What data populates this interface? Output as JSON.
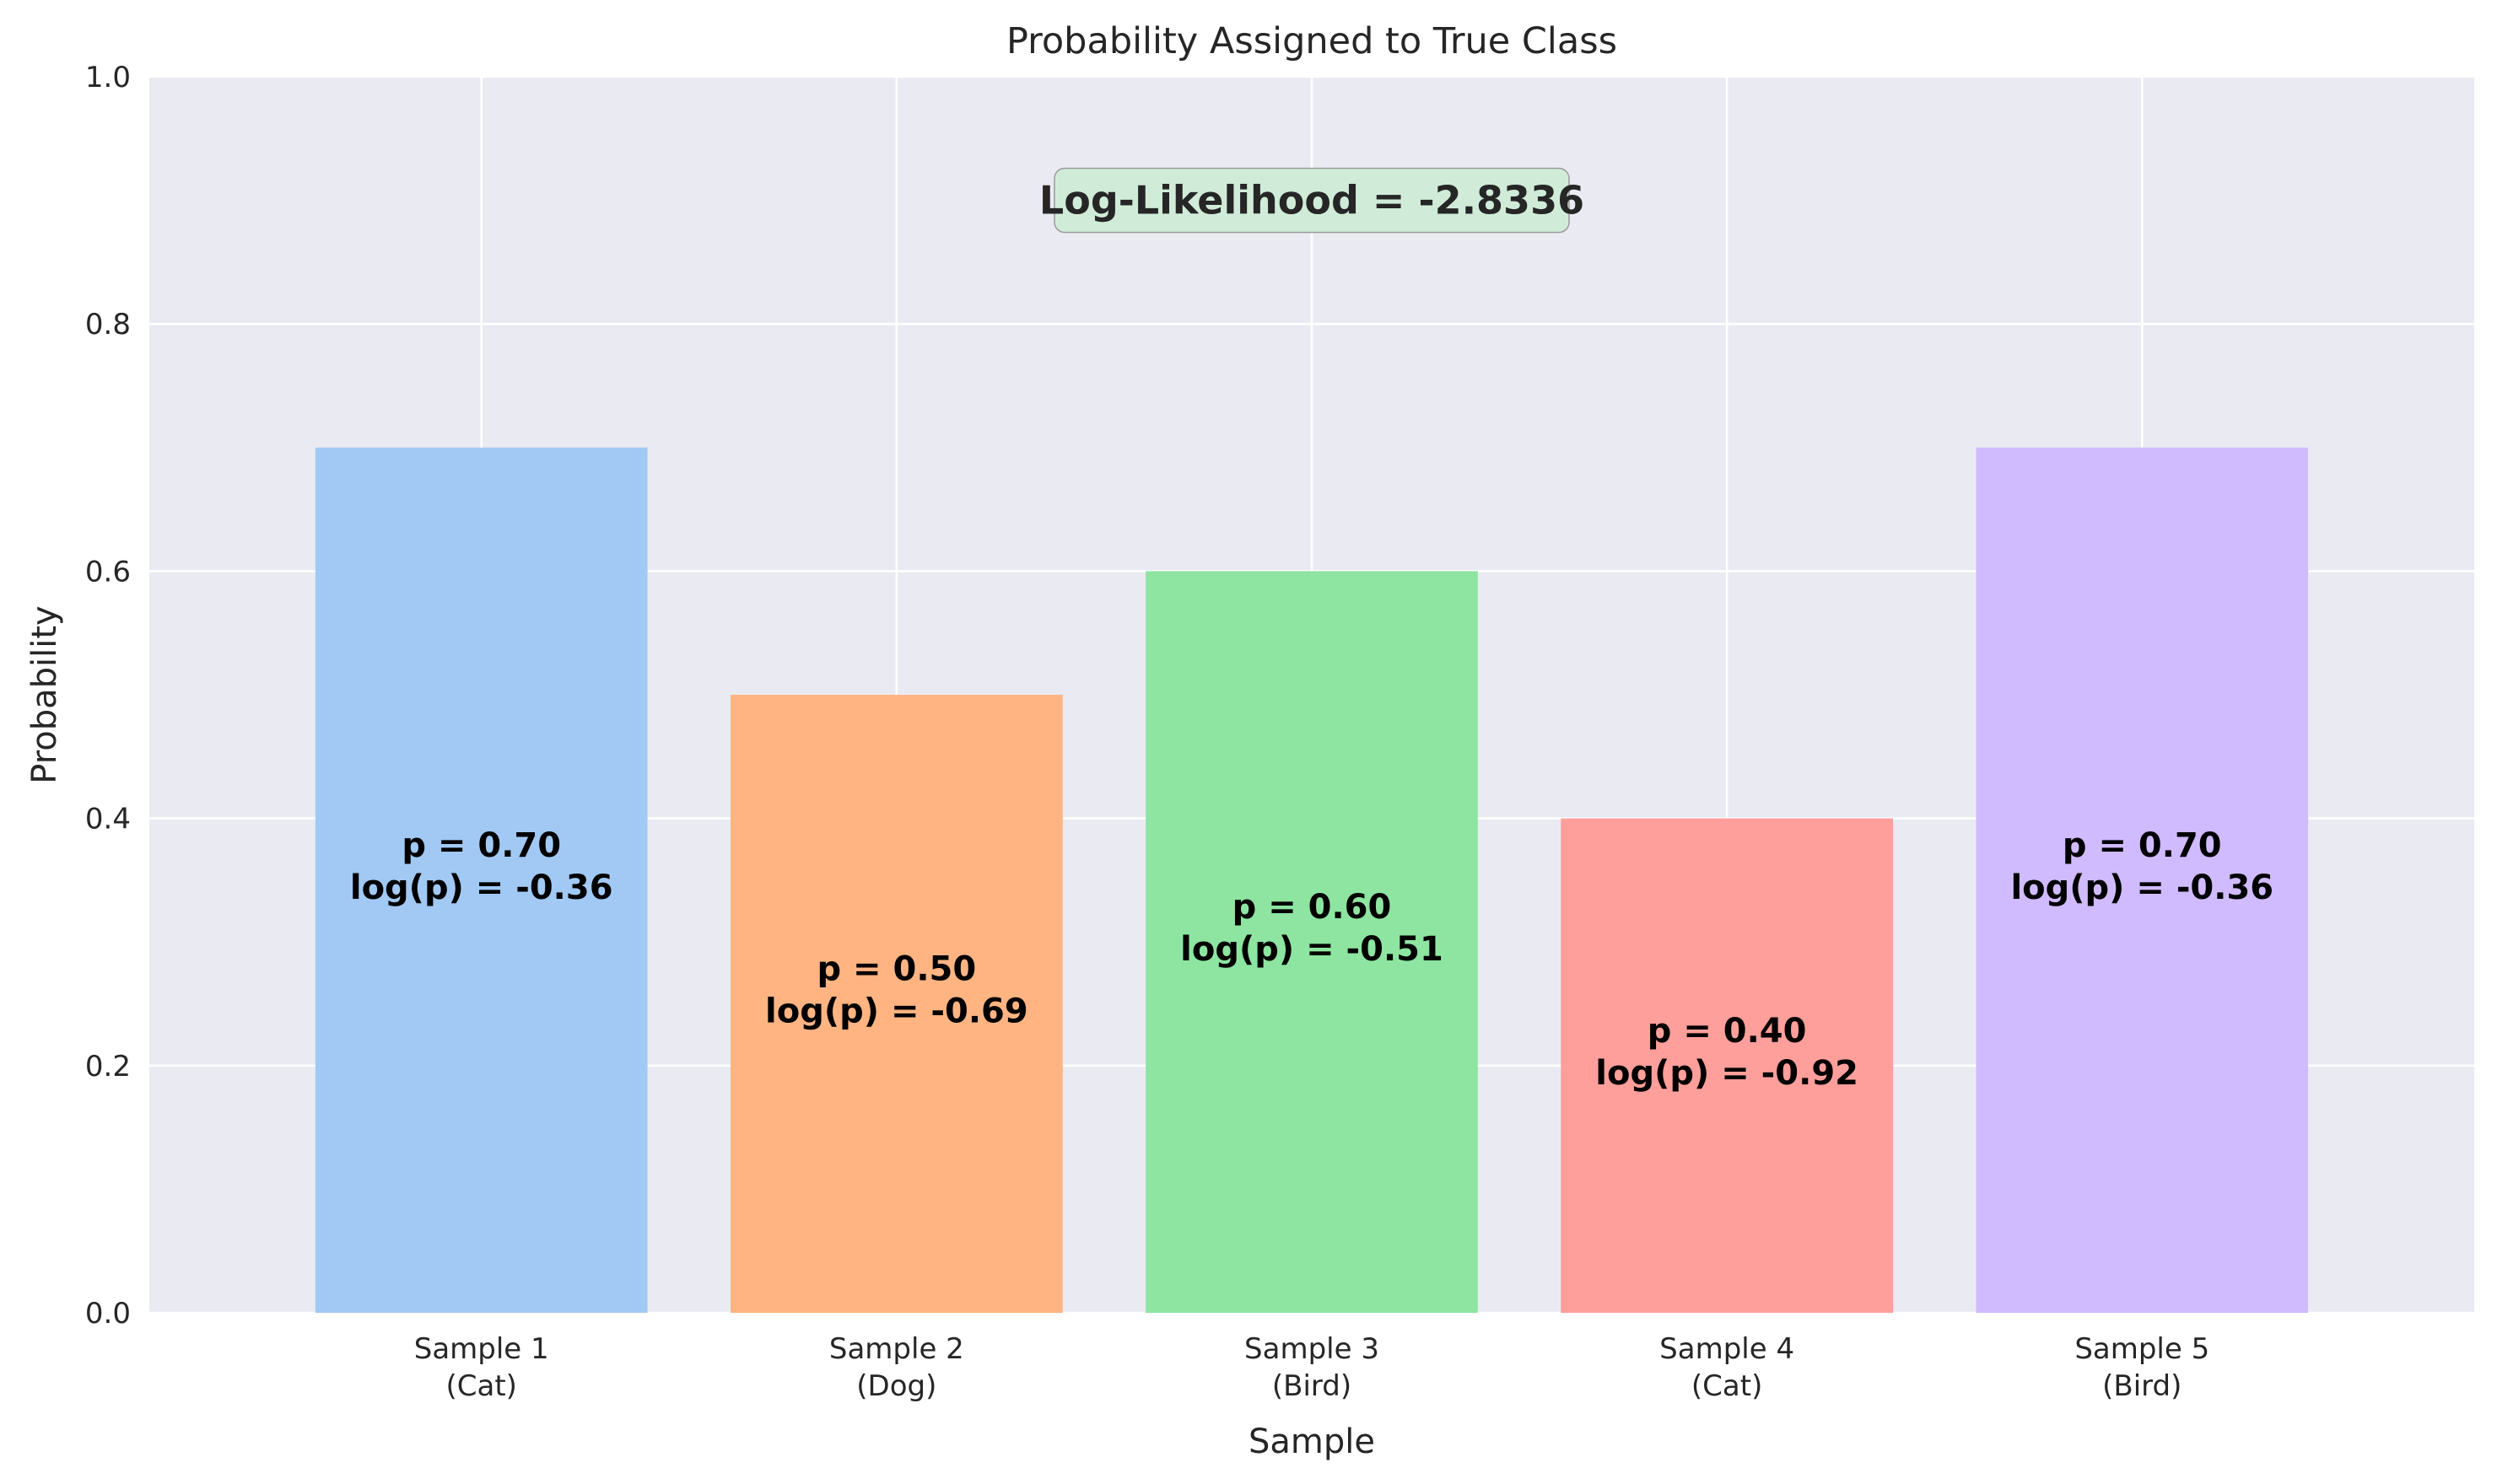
{
  "chart_data": {
    "type": "bar",
    "title": "Probability Assigned to True Class",
    "xlabel": "Sample",
    "ylabel": "Probability",
    "ylim": [
      0,
      1.0
    ],
    "yticks": [
      "0.0",
      "0.2",
      "0.4",
      "0.6",
      "0.8",
      "1.0"
    ],
    "grid": true,
    "categories": [
      [
        "Sample 1",
        "(Cat)"
      ],
      [
        "Sample 2",
        "(Dog)"
      ],
      [
        "Sample 3",
        "(Bird)"
      ],
      [
        "Sample 4",
        "(Cat)"
      ],
      [
        "Sample 5",
        "(Bird)"
      ]
    ],
    "values": [
      0.7,
      0.5,
      0.6,
      0.4,
      0.7
    ],
    "bar_colors": [
      "#a1c9f4",
      "#ffb482",
      "#8de5a1",
      "#ff9f9b",
      "#d0bbff"
    ],
    "bar_labels": [
      [
        "p = 0.70",
        "log(p) = -0.36"
      ],
      [
        "p = 0.50",
        "log(p) = -0.69"
      ],
      [
        "p = 0.60",
        "log(p) = -0.51"
      ],
      [
        "p = 0.40",
        "log(p) = -0.92"
      ],
      [
        "p = 0.70",
        "log(p) = -0.36"
      ]
    ],
    "annotation": {
      "text": "Log-Likelihood = -2.8336",
      "y": 0.9,
      "box_color": "#d0ecd8"
    },
    "plot_background": "#eaeaf2"
  }
}
